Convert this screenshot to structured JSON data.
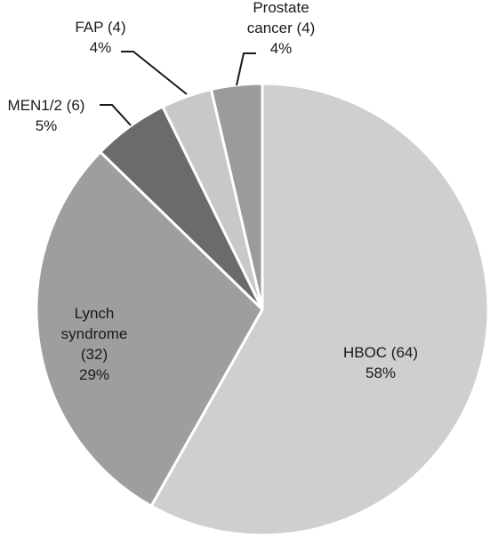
{
  "chart_data": {
    "type": "pie",
    "title": "",
    "legend": "none",
    "slices": [
      {
        "name": "HBOC",
        "count": 64,
        "percent_label": "58%",
        "label": "HBOC (64)",
        "color": "#cfcfcf"
      },
      {
        "name": "Lynch syndrome",
        "count": 32,
        "percent_label": "29%",
        "label": "Lynch syndrome (32)",
        "color": "#9e9e9e"
      },
      {
        "name": "MEN1/2",
        "count": 6,
        "percent_label": "5%",
        "label": "MEN1/2 (6)",
        "color": "#6b6b6b"
      },
      {
        "name": "FAP",
        "count": 4,
        "percent_label": "4%",
        "label": "FAP (4)",
        "color": "#c8c8c8"
      },
      {
        "name": "Prostate cancer",
        "count": 4,
        "percent_label": "4%",
        "label": "Prostate cancer (4)",
        "color": "#9b9b9b"
      }
    ]
  }
}
